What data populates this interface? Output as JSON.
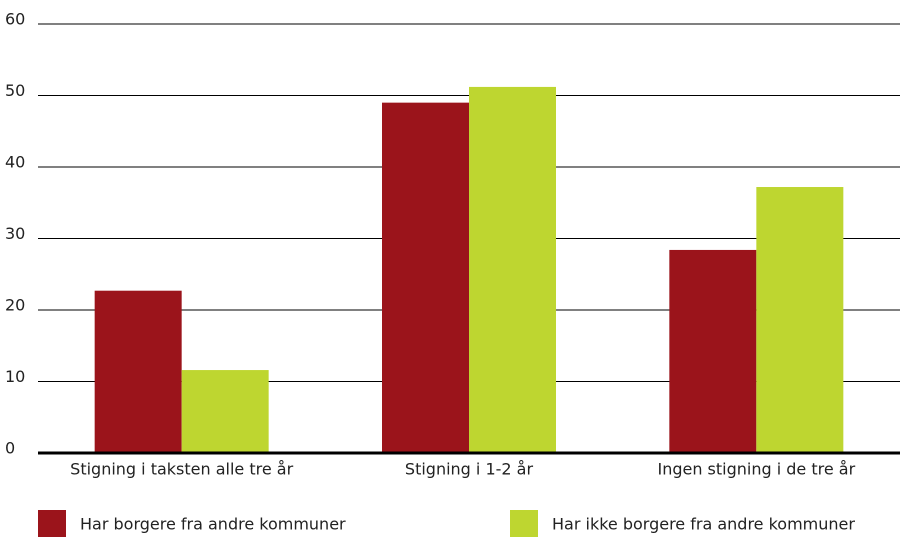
{
  "chart_data": {
    "type": "bar",
    "categories": [
      "Stigning i taksten alle tre år",
      "Stigning i 1-2 år",
      "Ingen stigning i de tre år"
    ],
    "series": [
      {
        "name": "Har borgere fra andre kommuner",
        "color": "#9b141b",
        "values": [
          22.7,
          49,
          28.4
        ]
      },
      {
        "name": "Har ikke borgere fra andre kommuner",
        "color": "#bed630",
        "values": [
          11.6,
          51.2,
          37.2
        ]
      }
    ],
    "ylim": [
      0,
      60
    ],
    "yticks": [
      0,
      10,
      20,
      30,
      40,
      50,
      60
    ],
    "grid": true,
    "legend": "bottom"
  }
}
